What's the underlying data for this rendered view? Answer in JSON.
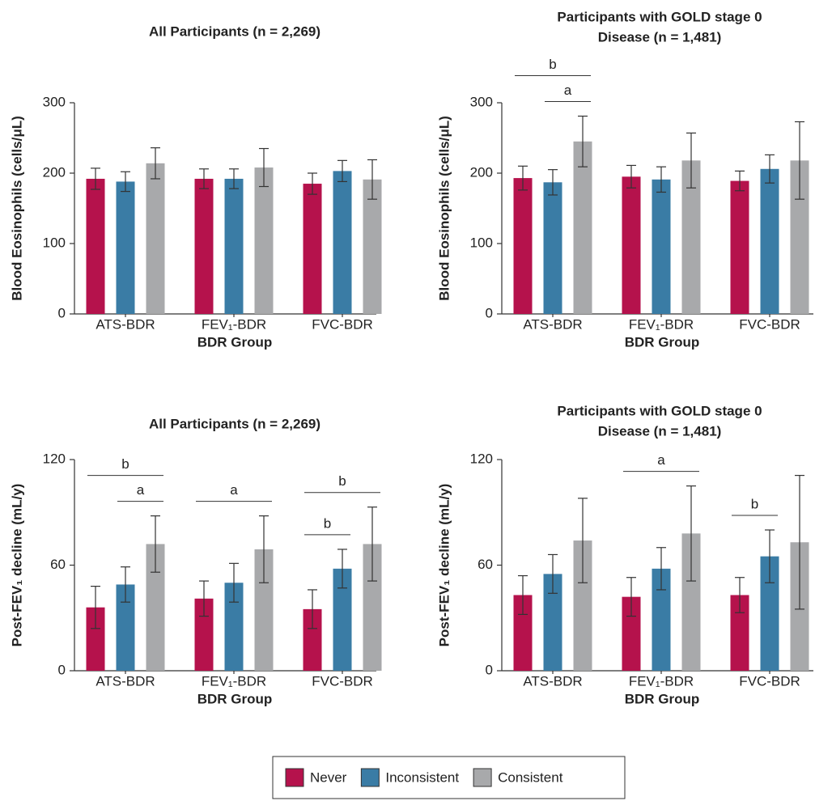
{
  "legend": [
    {
      "name": "Never",
      "color": "#b5124c"
    },
    {
      "name": "Inconsistent",
      "color": "#3a7ca5"
    },
    {
      "name": "Consistent",
      "color": "#a8a9ab"
    }
  ],
  "chart_data": [
    {
      "type": "bar",
      "title": [
        "All Participants (n = 2,269)"
      ],
      "xlabel": "BDR Group",
      "ylabel": "Blood Eosinophils (cells/μL)",
      "categories": [
        "ATS-BDR",
        "FEV₁-BDR",
        "FVC-BDR"
      ],
      "series": [
        {
          "values": [
            192,
            192,
            185
          ],
          "errors": [
            15,
            14,
            15
          ]
        },
        {
          "values": [
            188,
            192,
            203
          ],
          "errors": [
            14,
            14,
            15
          ]
        },
        {
          "values": [
            214,
            208,
            191
          ],
          "errors": [
            22,
            27,
            28
          ]
        }
      ],
      "ylim": [
        0,
        300
      ],
      "yticks": [
        0,
        100,
        200,
        300
      ],
      "brackets": []
    },
    {
      "type": "bar",
      "title": [
        "Participants with GOLD stage 0",
        "Disease (n = 1,481)"
      ],
      "xlabel": "BDR Group",
      "ylabel": "Blood Eosinophils (cells/μL)",
      "categories": [
        "ATS-BDR",
        "FEV₁-BDR",
        "FVC-BDR"
      ],
      "series": [
        {
          "values": [
            193,
            195,
            189
          ],
          "errors": [
            17,
            16,
            14
          ]
        },
        {
          "values": [
            187,
            191,
            206
          ],
          "errors": [
            18,
            18,
            20
          ]
        },
        {
          "values": [
            245,
            218,
            218
          ],
          "errors": [
            36,
            39,
            55
          ]
        }
      ],
      "ylim": [
        0,
        300
      ],
      "yticks": [
        0,
        100,
        200,
        300
      ],
      "brackets": [
        {
          "label": "b",
          "category": 0,
          "from": 0,
          "to": 2
        },
        {
          "label": "a",
          "category": 0,
          "from": 1,
          "to": 2
        }
      ]
    },
    {
      "type": "bar",
      "title": [
        "All Participants (n = 2,269)"
      ],
      "xlabel": "BDR Group",
      "ylabel": "Post-FEV₁ decline (mL/y)",
      "categories": [
        "ATS-BDR",
        "FEV₁-BDR",
        "FVC-BDR"
      ],
      "series": [
        {
          "values": [
            36,
            41,
            35
          ],
          "errors": [
            12,
            10,
            11
          ]
        },
        {
          "values": [
            49,
            50,
            58
          ],
          "errors": [
            10,
            11,
            11
          ]
        },
        {
          "values": [
            72,
            69,
            72
          ],
          "errors": [
            16,
            19,
            21
          ]
        }
      ],
      "ylim": [
        0,
        120
      ],
      "yticks": [
        0,
        60,
        120
      ],
      "brackets": [
        {
          "label": "b",
          "category": 0,
          "from": 0,
          "to": 2
        },
        {
          "label": "a",
          "category": 0,
          "from": 1,
          "to": 2
        },
        {
          "label": "a",
          "category": 1,
          "from": 0,
          "to": 2
        },
        {
          "label": "b",
          "category": 2,
          "from": 0,
          "to": 2
        },
        {
          "label": "b",
          "category": 2,
          "from": 0,
          "to": 1
        }
      ]
    },
    {
      "type": "bar",
      "title": [
        "Participants with GOLD stage 0",
        "Disease (n = 1,481)"
      ],
      "xlabel": "BDR Group",
      "ylabel": "Post-FEV₁ decline (mL/y)",
      "categories": [
        "ATS-BDR",
        "FEV₁-BDR",
        "FVC-BDR"
      ],
      "series": [
        {
          "values": [
            43,
            42,
            43
          ],
          "errors": [
            11,
            11,
            10
          ]
        },
        {
          "values": [
            55,
            58,
            65
          ],
          "errors": [
            11,
            12,
            15
          ]
        },
        {
          "values": [
            74,
            78,
            73
          ],
          "errors": [
            24,
            27,
            38
          ]
        }
      ],
      "ylim": [
        0,
        120
      ],
      "yticks": [
        0,
        60,
        120
      ],
      "brackets": [
        {
          "label": "a",
          "category": 1,
          "from": 0,
          "to": 2
        },
        {
          "label": "b",
          "category": 2,
          "from": 0,
          "to": 1
        }
      ]
    }
  ]
}
